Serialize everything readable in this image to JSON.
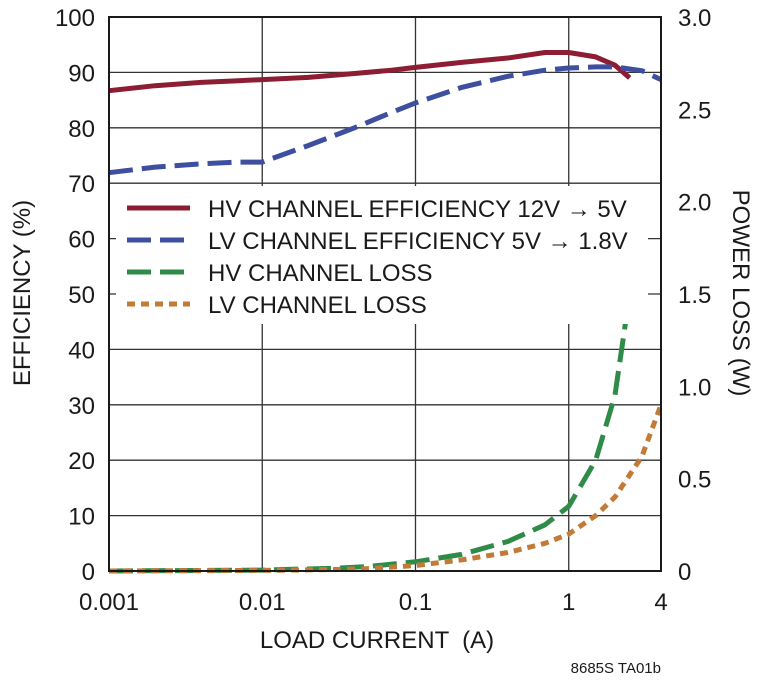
{
  "chart_data": {
    "type": "line",
    "figure_code": "8685S TA01b",
    "xlabel": "LOAD CURRENT  (A)",
    "ylabel_left": "EFFICIENCY (%)",
    "ylabel_right": "POWER LOSS (W)",
    "x_scale": "log",
    "xlim": [
      0.001,
      4
    ],
    "ylim_left": [
      0,
      100
    ],
    "ylim_right": [
      0,
      3
    ],
    "x_ticks": [
      {
        "value": 0.001,
        "label": "0.001"
      },
      {
        "value": 0.01,
        "label": "0.01"
      },
      {
        "value": 0.1,
        "label": "0.1"
      },
      {
        "value": 1,
        "label": "1"
      },
      {
        "value": 4,
        "label": "4"
      }
    ],
    "y_left_ticks": [
      {
        "value": 0,
        "label": "0"
      },
      {
        "value": 10,
        "label": "10"
      },
      {
        "value": 20,
        "label": "20"
      },
      {
        "value": 30,
        "label": "30"
      },
      {
        "value": 40,
        "label": "40"
      },
      {
        "value": 50,
        "label": "50"
      },
      {
        "value": 60,
        "label": "60"
      },
      {
        "value": 70,
        "label": "70"
      },
      {
        "value": 80,
        "label": "80"
      },
      {
        "value": 90,
        "label": "90"
      },
      {
        "value": 100,
        "label": "100"
      }
    ],
    "y_right_ticks": [
      {
        "value": 0,
        "label": "0"
      },
      {
        "value": 0.5,
        "label": "0.5"
      },
      {
        "value": 1.0,
        "label": "1.0"
      },
      {
        "value": 1.5,
        "label": "1.5"
      },
      {
        "value": 2.0,
        "label": "2.0"
      },
      {
        "value": 2.5,
        "label": "2.5"
      },
      {
        "value": 3.0,
        "label": "3.0"
      }
    ],
    "grid": true,
    "legend_location": "middle-left",
    "series": [
      {
        "name": "HV CHANNEL EFFICIENCY 12V → 5V",
        "axis": "left",
        "color": "#8c1d33",
        "style": "solid",
        "points": [
          [
            0.001,
            86.7
          ],
          [
            0.002,
            87.6
          ],
          [
            0.004,
            88.2
          ],
          [
            0.007,
            88.5
          ],
          [
            0.01,
            88.7
          ],
          [
            0.02,
            89.1
          ],
          [
            0.04,
            89.8
          ],
          [
            0.07,
            90.4
          ],
          [
            0.1,
            90.9
          ],
          [
            0.2,
            91.8
          ],
          [
            0.4,
            92.6
          ],
          [
            0.7,
            93.6
          ],
          [
            1.0,
            93.6
          ],
          [
            1.5,
            92.8
          ],
          [
            2.0,
            91.3
          ],
          [
            2.5,
            89.0
          ]
        ]
      },
      {
        "name": "LV CHANNEL EFFICIENCY 5V → 1.8V",
        "axis": "left",
        "color": "#3d4f9e",
        "style": "dashed",
        "points": [
          [
            0.001,
            71.9
          ],
          [
            0.002,
            72.9
          ],
          [
            0.004,
            73.5
          ],
          [
            0.007,
            73.8
          ],
          [
            0.01,
            73.8
          ],
          [
            0.02,
            76.8
          ],
          [
            0.04,
            80.0
          ],
          [
            0.07,
            82.8
          ],
          [
            0.1,
            84.5
          ],
          [
            0.2,
            87.3
          ],
          [
            0.4,
            89.3
          ],
          [
            0.7,
            90.4
          ],
          [
            1.0,
            90.8
          ],
          [
            1.5,
            91.0
          ],
          [
            2.0,
            91.0
          ],
          [
            3.0,
            90.3
          ],
          [
            4.0,
            88.7
          ]
        ]
      },
      {
        "name": "HV CHANNEL LOSS",
        "axis": "right",
        "color": "#2e8b48",
        "style": "dashed",
        "points": [
          [
            0.001,
            0.0
          ],
          [
            0.01,
            0.005
          ],
          [
            0.03,
            0.015
          ],
          [
            0.05,
            0.025
          ],
          [
            0.1,
            0.05
          ],
          [
            0.2,
            0.09
          ],
          [
            0.4,
            0.16
          ],
          [
            0.7,
            0.25
          ],
          [
            1.0,
            0.35
          ],
          [
            1.5,
            0.6
          ],
          [
            2.0,
            0.95
          ],
          [
            2.5,
            1.5
          ]
        ]
      },
      {
        "name": "LV CHANNEL LOSS",
        "axis": "right",
        "color": "#c27a37",
        "style": "dotted",
        "points": [
          [
            0.001,
            0.0
          ],
          [
            0.01,
            0.003
          ],
          [
            0.03,
            0.008
          ],
          [
            0.05,
            0.013
          ],
          [
            0.1,
            0.03
          ],
          [
            0.2,
            0.06
          ],
          [
            0.4,
            0.1
          ],
          [
            0.7,
            0.15
          ],
          [
            1.0,
            0.2
          ],
          [
            1.5,
            0.3
          ],
          [
            2.0,
            0.4
          ],
          [
            3.0,
            0.62
          ],
          [
            4.0,
            0.9
          ]
        ]
      }
    ]
  }
}
